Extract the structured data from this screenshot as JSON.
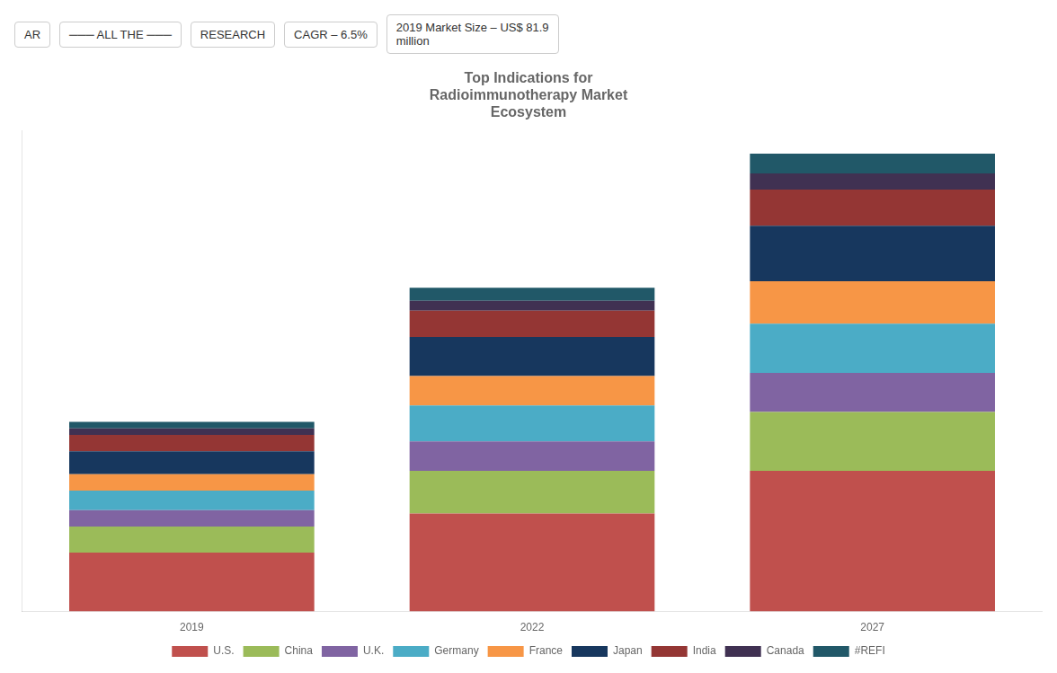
{
  "chart_data": {
    "type": "bar",
    "title": "Top Indications for\nRadioimmunotherapy Market\nEcosystem",
    "categories": [
      "2019",
      "2022",
      "2027"
    ],
    "series": [
      {
        "name": "U.S.",
        "color": "#c0504d",
        "values": [
          18,
          30,
          43
        ]
      },
      {
        "name": "China",
        "color": "#9bbb59",
        "values": [
          8,
          13,
          18
        ]
      },
      {
        "name": "U.K.",
        "color": "#8064a2",
        "values": [
          5,
          9,
          12
        ]
      },
      {
        "name": "Germany",
        "color": "#4bacc6",
        "values": [
          6,
          11,
          15
        ]
      },
      {
        "name": "France",
        "color": "#f79646",
        "values": [
          5,
          9,
          13
        ]
      },
      {
        "name": "Japan",
        "color": "#17375e",
        "values": [
          7,
          12,
          17
        ]
      },
      {
        "name": "India",
        "color": "#943634",
        "values": [
          5,
          8,
          11
        ]
      },
      {
        "name": "Canada",
        "color": "#403152",
        "values": [
          2,
          3,
          5
        ]
      },
      {
        "name": "#REFI",
        "color": "#215868",
        "values": [
          2,
          4,
          6
        ]
      }
    ],
    "stacked": true,
    "ylim": [
      0,
      147
    ],
    "grid": false,
    "legend": "bottom",
    "tick_labels": "x",
    "annotations": [
      "AR",
      "─── ALL THE ───",
      "RESEARCH",
      "CAGR – 6.5%",
      "2019 Market Size – US$ 81.9\nmillion"
    ]
  }
}
